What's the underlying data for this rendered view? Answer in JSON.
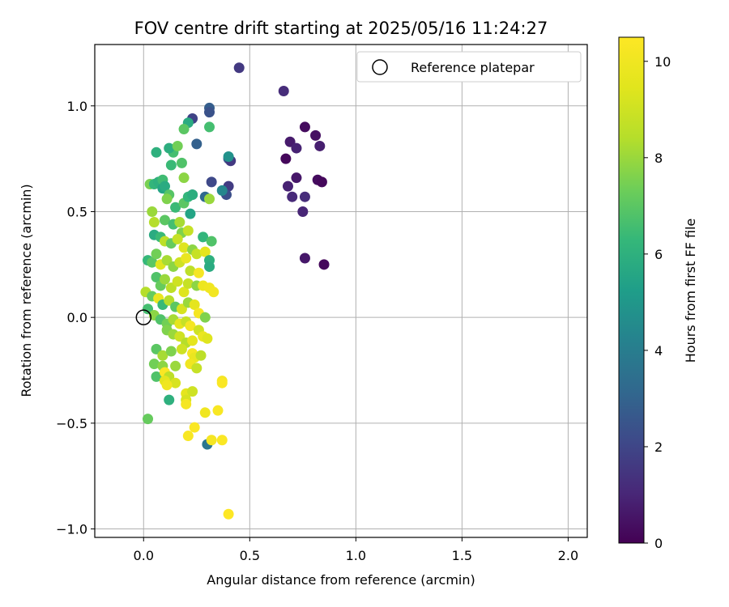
{
  "chart_data": {
    "type": "scatter",
    "title": "FOV centre drift starting at 2025/05/16 11:24:27",
    "xlabel": "Angular distance from reference (arcmin)",
    "ylabel": "Rotation from reference (arcmin)",
    "xlim": [
      -0.23,
      2.09
    ],
    "ylim": [
      -1.04,
      1.29
    ],
    "xticks": [
      0.0,
      0.5,
      1.0,
      1.5,
      2.0
    ],
    "xtick_labels": [
      "0.0",
      "0.5",
      "1.0",
      "1.5",
      "2.0"
    ],
    "yticks": [
      -1.0,
      -0.5,
      0.0,
      0.5,
      1.0
    ],
    "ytick_labels": [
      "−1.0",
      "−0.5",
      "0.0",
      "0.5",
      "1.0"
    ],
    "grid": true,
    "legend": {
      "placement": "top-right",
      "entries": [
        {
          "label": "Reference platepar",
          "marker": "open-circle"
        }
      ]
    },
    "reference_point": {
      "x": 0.0,
      "y": 0.0
    },
    "colorbar": {
      "label": "Hours from first FF file",
      "colormap": "viridis",
      "range": [
        0,
        10.5
      ],
      "ticks": [
        0,
        2,
        4,
        6,
        8,
        10
      ],
      "tick_labels": [
        "0",
        "2",
        "4",
        "6",
        "8",
        "10"
      ]
    },
    "series": [
      {
        "values_note": "points as [x, y, hours]",
        "points": [
          [
            0.45,
            1.18,
            1.6
          ],
          [
            0.66,
            1.07,
            1.2
          ],
          [
            0.76,
            0.9,
            0.3
          ],
          [
            0.81,
            0.86,
            0.4
          ],
          [
            0.83,
            0.81,
            0.8
          ],
          [
            0.69,
            0.83,
            0.7
          ],
          [
            0.72,
            0.8,
            0.9
          ],
          [
            0.67,
            0.75,
            0.2
          ],
          [
            0.72,
            0.66,
            0.6
          ],
          [
            0.82,
            0.65,
            0.3
          ],
          [
            0.84,
            0.64,
            0.2
          ],
          [
            0.68,
            0.62,
            0.9
          ],
          [
            0.7,
            0.57,
            1.1
          ],
          [
            0.76,
            0.57,
            1.2
          ],
          [
            0.75,
            0.5,
            1.0
          ],
          [
            0.76,
            0.28,
            0.6
          ],
          [
            0.85,
            0.25,
            0.2
          ],
          [
            0.31,
            0.99,
            2.8
          ],
          [
            0.31,
            0.97,
            2.4
          ],
          [
            0.23,
            0.94,
            1.9
          ],
          [
            0.25,
            0.82,
            2.9
          ],
          [
            0.4,
            0.75,
            2.5
          ],
          [
            0.41,
            0.74,
            1.6
          ],
          [
            0.32,
            0.64,
            2.1
          ],
          [
            0.4,
            0.62,
            1.7
          ],
          [
            0.39,
            0.58,
            2.3
          ],
          [
            0.23,
            0.58,
            2.7
          ],
          [
            0.29,
            0.57,
            3.2
          ],
          [
            0.37,
            0.6,
            4.4
          ],
          [
            0.4,
            0.76,
            4.8
          ],
          [
            0.3,
            -0.6,
            3.7
          ],
          [
            0.21,
            0.92,
            5.8
          ],
          [
            0.31,
            0.9,
            6.6
          ],
          [
            0.19,
            0.89,
            7.0
          ],
          [
            0.06,
            0.78,
            6.0
          ],
          [
            0.14,
            0.78,
            6.6
          ],
          [
            0.12,
            0.8,
            5.9
          ],
          [
            0.16,
            0.81,
            7.4
          ],
          [
            0.13,
            0.72,
            6.4
          ],
          [
            0.18,
            0.73,
            6.8
          ],
          [
            0.19,
            0.66,
            7.8
          ],
          [
            0.03,
            0.63,
            7.5
          ],
          [
            0.05,
            0.63,
            6.2
          ],
          [
            0.07,
            0.64,
            6.0
          ],
          [
            0.09,
            0.61,
            5.5
          ],
          [
            0.09,
            0.65,
            6.5
          ],
          [
            0.1,
            0.62,
            5.8
          ],
          [
            0.12,
            0.58,
            6.9
          ],
          [
            0.15,
            0.52,
            6.4
          ],
          [
            0.19,
            0.54,
            7.0
          ],
          [
            0.21,
            0.57,
            6.2
          ],
          [
            0.23,
            0.58,
            5.9
          ],
          [
            0.22,
            0.49,
            5.5
          ],
          [
            0.31,
            0.56,
            8.0
          ],
          [
            0.11,
            0.56,
            7.6
          ],
          [
            0.04,
            0.5,
            8.0
          ],
          [
            0.05,
            0.45,
            8.4
          ],
          [
            0.1,
            0.46,
            7.0
          ],
          [
            0.14,
            0.44,
            6.6
          ],
          [
            0.17,
            0.45,
            8.2
          ],
          [
            0.18,
            0.4,
            7.6
          ],
          [
            0.21,
            0.41,
            8.8
          ],
          [
            0.28,
            0.38,
            6.2
          ],
          [
            0.32,
            0.36,
            6.8
          ],
          [
            0.05,
            0.39,
            5.8
          ],
          [
            0.08,
            0.38,
            6.4
          ],
          [
            0.1,
            0.36,
            8.6
          ],
          [
            0.13,
            0.35,
            7.2
          ],
          [
            0.16,
            0.37,
            8.8
          ],
          [
            0.19,
            0.33,
            9.4
          ],
          [
            0.23,
            0.32,
            7.8
          ],
          [
            0.25,
            0.3,
            8.8
          ],
          [
            0.29,
            0.31,
            9.6
          ],
          [
            0.31,
            0.27,
            6.0
          ],
          [
            0.31,
            0.24,
            5.8
          ],
          [
            0.02,
            0.27,
            6.3
          ],
          [
            0.04,
            0.26,
            7.0
          ],
          [
            0.06,
            0.3,
            7.4
          ],
          [
            0.08,
            0.25,
            9.4
          ],
          [
            0.11,
            0.27,
            8.2
          ],
          [
            0.14,
            0.24,
            7.8
          ],
          [
            0.17,
            0.26,
            9.0
          ],
          [
            0.2,
            0.28,
            9.8
          ],
          [
            0.22,
            0.22,
            8.6
          ],
          [
            0.26,
            0.21,
            10.2
          ],
          [
            0.06,
            0.19,
            6.8
          ],
          [
            0.08,
            0.15,
            7.2
          ],
          [
            0.1,
            0.18,
            8.0
          ],
          [
            0.13,
            0.14,
            8.6
          ],
          [
            0.16,
            0.17,
            9.0
          ],
          [
            0.19,
            0.12,
            9.4
          ],
          [
            0.21,
            0.16,
            8.8
          ],
          [
            0.25,
            0.15,
            7.8
          ],
          [
            0.28,
            0.15,
            9.9
          ],
          [
            0.31,
            0.14,
            10.0
          ],
          [
            0.33,
            0.12,
            10.1
          ],
          [
            0.01,
            0.12,
            8.4
          ],
          [
            0.04,
            0.1,
            7.2
          ],
          [
            0.07,
            0.09,
            9.8
          ],
          [
            0.09,
            0.06,
            6.4
          ],
          [
            0.12,
            0.08,
            8.4
          ],
          [
            0.15,
            0.05,
            7.0
          ],
          [
            0.18,
            0.04,
            9.2
          ],
          [
            0.21,
            0.07,
            8.0
          ],
          [
            0.24,
            0.06,
            9.6
          ],
          [
            0.26,
            0.02,
            10.2
          ],
          [
            0.29,
            0.0,
            7.6
          ],
          [
            0.02,
            0.04,
            6.6
          ],
          [
            0.05,
            0.01,
            7.8
          ],
          [
            0.08,
            -0.01,
            6.8
          ],
          [
            0.11,
            -0.03,
            7.4
          ],
          [
            0.14,
            -0.01,
            8.2
          ],
          [
            0.17,
            -0.03,
            9.6
          ],
          [
            0.2,
            -0.02,
            8.8
          ],
          [
            0.22,
            -0.04,
            10.2
          ],
          [
            0.26,
            -0.06,
            9.0
          ],
          [
            0.28,
            -0.09,
            9.8
          ],
          [
            0.3,
            -0.1,
            9.4
          ],
          [
            0.11,
            -0.06,
            7.6
          ],
          [
            0.14,
            -0.08,
            8.0
          ],
          [
            0.17,
            -0.09,
            9.0
          ],
          [
            0.2,
            -0.12,
            8.4
          ],
          [
            0.23,
            -0.11,
            9.6
          ],
          [
            0.06,
            -0.15,
            7.0
          ],
          [
            0.09,
            -0.18,
            8.2
          ],
          [
            0.13,
            -0.16,
            7.6
          ],
          [
            0.18,
            -0.15,
            9.0
          ],
          [
            0.23,
            -0.17,
            10.2
          ],
          [
            0.24,
            -0.19,
            9.8
          ],
          [
            0.27,
            -0.18,
            8.6
          ],
          [
            0.05,
            -0.22,
            7.4
          ],
          [
            0.09,
            -0.23,
            7.8
          ],
          [
            0.15,
            -0.23,
            8.0
          ],
          [
            0.22,
            -0.22,
            10.0
          ],
          [
            0.25,
            -0.24,
            8.8
          ],
          [
            0.06,
            -0.28,
            6.8
          ],
          [
            0.1,
            -0.26,
            10.4
          ],
          [
            0.12,
            -0.28,
            8.6
          ],
          [
            0.15,
            -0.31,
            9.2
          ],
          [
            0.1,
            -0.3,
            9.6
          ],
          [
            0.11,
            -0.32,
            10.0
          ],
          [
            0.37,
            -0.3,
            10.2
          ],
          [
            0.37,
            -0.31,
            10.4
          ],
          [
            0.2,
            -0.36,
            9.6
          ],
          [
            0.23,
            -0.35,
            9.0
          ],
          [
            0.2,
            -0.39,
            9.2
          ],
          [
            0.2,
            -0.41,
            10.2
          ],
          [
            0.12,
            -0.39,
            6.0
          ],
          [
            0.35,
            -0.44,
            10.3
          ],
          [
            0.29,
            -0.45,
            10.0
          ],
          [
            0.24,
            -0.52,
            10.4
          ],
          [
            0.21,
            -0.56,
            10.3
          ],
          [
            0.32,
            -0.58,
            10.2
          ],
          [
            0.37,
            -0.58,
            10.4
          ],
          [
            0.02,
            -0.48,
            7.2
          ],
          [
            0.4,
            -0.93,
            10.5
          ]
        ]
      }
    ]
  }
}
